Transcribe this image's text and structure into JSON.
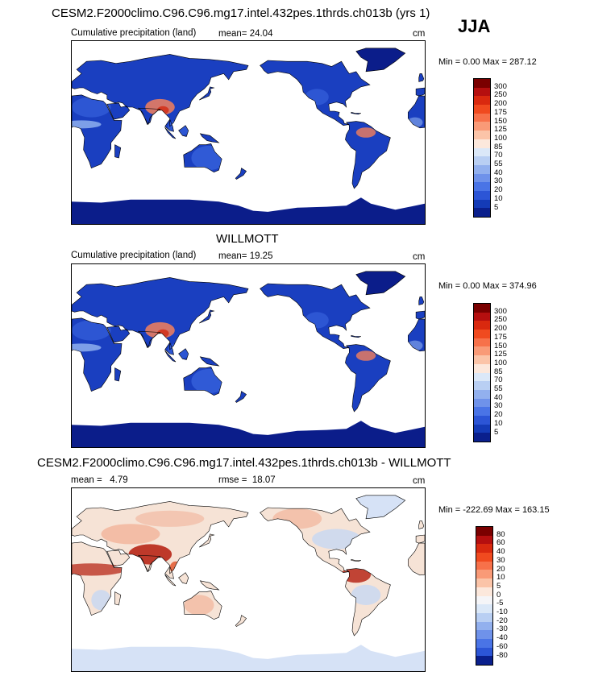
{
  "header": {
    "title": "CESM2.F2000climo.C96.C96.mg17.intel.432pes.1thrds.ch013b (yrs 1)",
    "season": "JJA"
  },
  "panels": [
    {
      "id": "model",
      "left_label": "Cumulative precipitation (land)",
      "mean_label": "mean=",
      "mean_value": "24.04",
      "units": "cm",
      "minmax": "Min =    0.00 Max = 287.12"
    },
    {
      "id": "obs",
      "title": "WILLMOTT",
      "left_label": "Cumulative precipitation (land)",
      "mean_label": "mean=",
      "mean_value": "19.25",
      "units": "cm",
      "minmax": "Min =    0.00 Max = 374.96"
    },
    {
      "id": "diff",
      "title": "CESM2.F2000climo.C96.C96.mg17.intel.432pes.1thrds.ch013b - WILLMOTT",
      "mean_label": "mean =",
      "mean_value": "4.79",
      "rmse_label": "rmse =",
      "rmse_value": "18.07",
      "units": "cm",
      "minmax": "Min = -222.69 Max = 163.15"
    }
  ],
  "colorbars": {
    "precip": {
      "levels": [
        "300",
        "250",
        "200",
        "175",
        "150",
        "125",
        "100",
        "85",
        "70",
        "55",
        "40",
        "30",
        "20",
        "10",
        "5"
      ],
      "colors": [
        "#7a0000",
        "#b50f0f",
        "#d9290f",
        "#f04a1f",
        "#f7714a",
        "#f99a77",
        "#fbc4a8",
        "#fce8dc",
        "#dbe8f8",
        "#b9cff3",
        "#92b0ee",
        "#6f92ea",
        "#4a74e6",
        "#2c55d6",
        "#143bb7",
        "#0a1f8c"
      ]
    },
    "diff": {
      "levels": [
        "80",
        "60",
        "40",
        "30",
        "20",
        "10",
        "5",
        "0",
        "-5",
        "-10",
        "-20",
        "-30",
        "-40",
        "-60",
        "-80"
      ],
      "colors": [
        "#7a0000",
        "#b50f0f",
        "#d9290f",
        "#f04a1f",
        "#f7714a",
        "#f99a77",
        "#fbc4a8",
        "#fce8dc",
        "#f5f5f8",
        "#dbe8f8",
        "#b9cff3",
        "#92b0ee",
        "#6f92ea",
        "#4a74e6",
        "#2c55d6",
        "#0a1f8c"
      ]
    }
  },
  "map_palettes": {
    "model": {
      "base": "#1a3fc0",
      "light": "#3a66e0",
      "pale": "#8fb0ee",
      "hot": "#f4805a",
      "hot2": "#d32a12",
      "ice": "#0b1d8a"
    },
    "obs": {
      "base": "#1a3fc0",
      "light": "#3a66e0",
      "pale": "#8fb0ee",
      "hot": "#f4805a",
      "hot2": "#d32a12",
      "ice": "#0b1d8a"
    },
    "diff": {
      "base": "#f6e3d6",
      "light": "#f2b39a",
      "pale": "#c7d7f3",
      "hot": "#e4603a",
      "hot2": "#b41b0c",
      "ice": "#d6e2f6"
    }
  }
}
